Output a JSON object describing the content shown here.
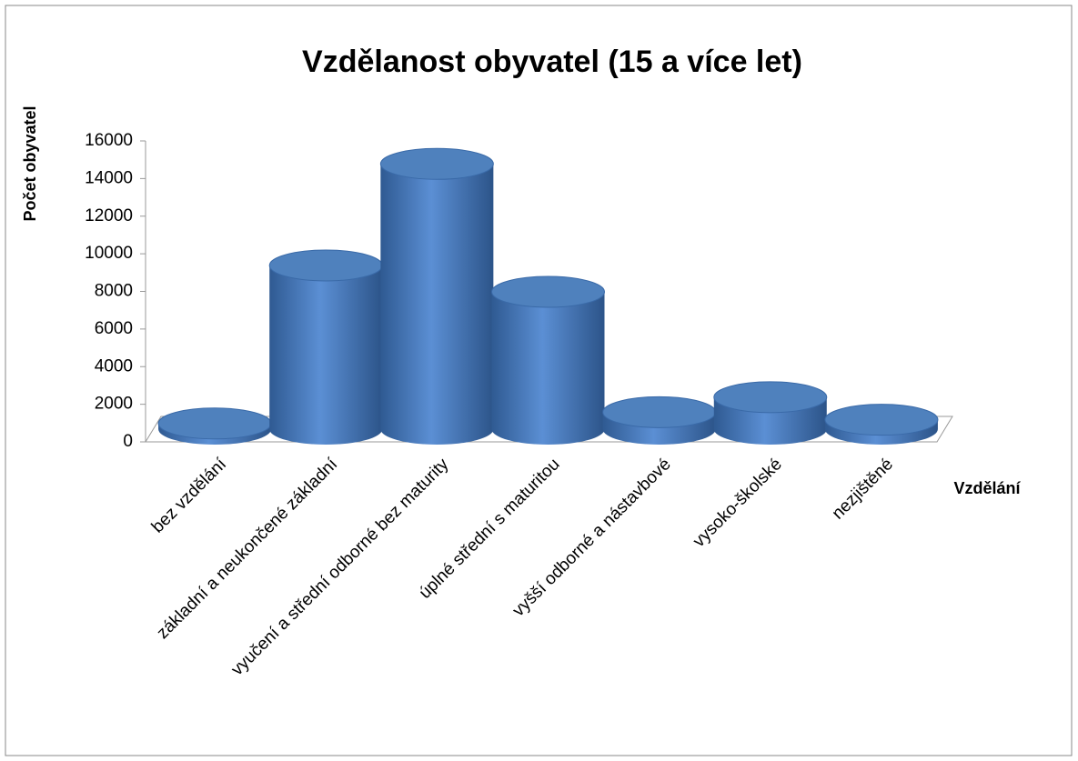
{
  "chart_data": {
    "type": "bar",
    "title": "Vzdělanost obyvatel (15 a více let)",
    "y_label": "Počet obyvatel",
    "x_label": "Vzdělání",
    "categories": [
      "bez vzdělání",
      "základní a neukončené základní",
      "vyučení a střední odborné bez maturity",
      "úplné střední s maturitou",
      "vyšší odborné a nástavbové",
      "vysoko-školské",
      "nezjištěné"
    ],
    "values": [
      300,
      8700,
      14100,
      7300,
      900,
      1700,
      500
    ],
    "color": "#4f81bd",
    "ylim": [
      0,
      16000
    ],
    "yticks": [
      0,
      2000,
      4000,
      6000,
      8000,
      10000,
      12000,
      14000,
      16000
    ]
  }
}
